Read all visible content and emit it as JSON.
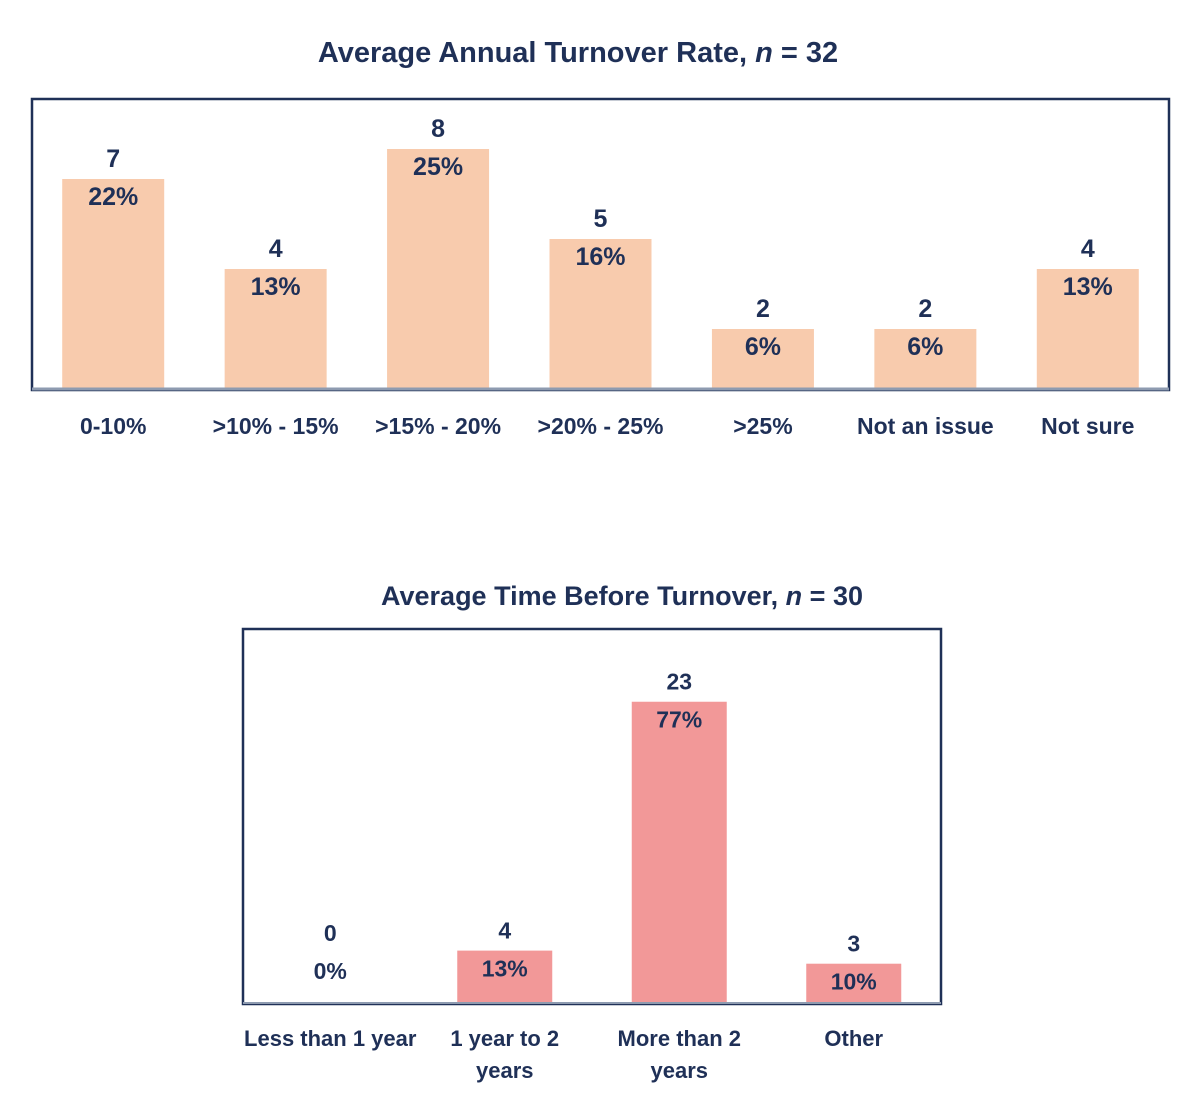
{
  "chart_data": [
    {
      "type": "bar",
      "title": "Average Annual Turnover Rate, ",
      "title_n_label": "n",
      "title_n_value": " = 32",
      "categories": [
        "0-10%",
        ">10% - 15%",
        ">15% - 20%",
        ">20% - 25%",
        ">25%",
        "Not an issue",
        "Not sure"
      ],
      "values": [
        7,
        4,
        8,
        5,
        2,
        2,
        4
      ],
      "percent_labels": [
        "22%",
        "13%",
        "25%",
        "16%",
        "6%",
        "6%",
        "13%"
      ],
      "ylim": [
        0,
        9
      ],
      "color": "#f8cbad",
      "xlabel": "",
      "ylabel": ""
    },
    {
      "type": "bar",
      "title": "Average Time Before Turnover, ",
      "title_n_label": "n",
      "title_n_value": " = 30",
      "categories": [
        [
          "Less than 1 year"
        ],
        [
          "1 year to 2",
          "years"
        ],
        [
          "More than 2",
          "years"
        ],
        [
          "Other"
        ]
      ],
      "values": [
        0,
        4,
        23,
        3
      ],
      "percent_labels": [
        "0%",
        "13%",
        "77%",
        "10%"
      ],
      "ylim": [
        0,
        25.5
      ],
      "color": "#f29898",
      "xlabel": "",
      "ylabel": ""
    }
  ]
}
